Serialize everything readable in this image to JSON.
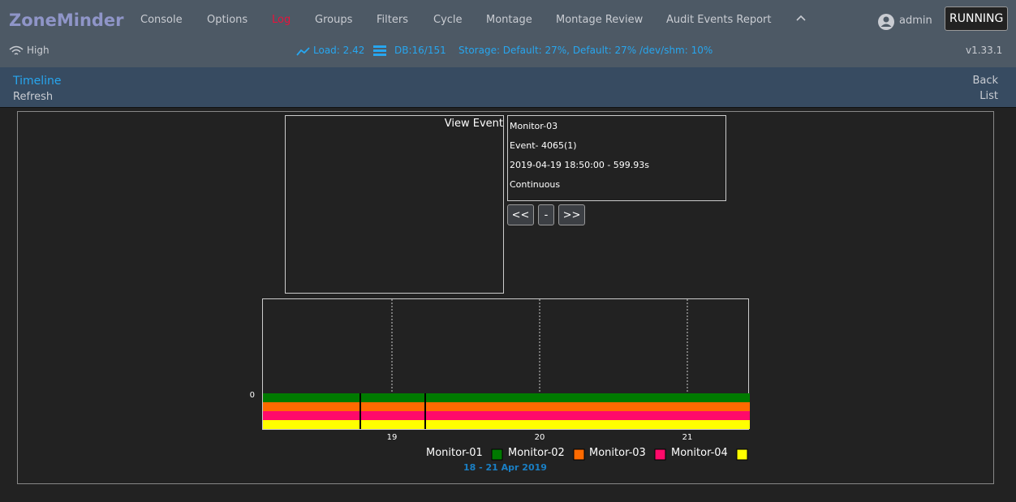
{
  "header": {
    "brand": "ZoneMinder",
    "nav": [
      "Console",
      "Options",
      "Log",
      "Groups",
      "Filters",
      "Cycle",
      "Montage",
      "Montage Review",
      "Audit Events Report"
    ],
    "user": "admin",
    "status": "RUNNING"
  },
  "statusbar": {
    "bandwidth": "High",
    "load": "Load: 2.42",
    "db": "DB:16/151",
    "storage": "Storage: Default: 27%, Default: 27% /dev/shm: 10%",
    "version": "v1.33.1"
  },
  "subheader": {
    "title": "Timeline",
    "refresh": "Refresh",
    "back": "Back",
    "list": "List"
  },
  "event": {
    "image_alt": "View Event",
    "monitor": "Monitor-03",
    "event": "Event- 4065(1)",
    "time": "2019-04-19 18:50:00 - 599.93s",
    "cause": "Continuous",
    "buttons": [
      "<<",
      "-",
      ">>"
    ]
  },
  "timeline": {
    "y_label": "0",
    "x_ticks": [
      "19",
      "20",
      "21"
    ],
    "range": "18 - 21 Apr 2019",
    "monitors": [
      {
        "name": "Monitor-01",
        "color": "#007a00"
      },
      {
        "name": "Monitor-02",
        "color": "#ff6a00"
      },
      {
        "name": "Monitor-03",
        "color": "#ff0a6a"
      },
      {
        "name": "Monitor-04",
        "color": "#ffff00"
      }
    ]
  }
}
